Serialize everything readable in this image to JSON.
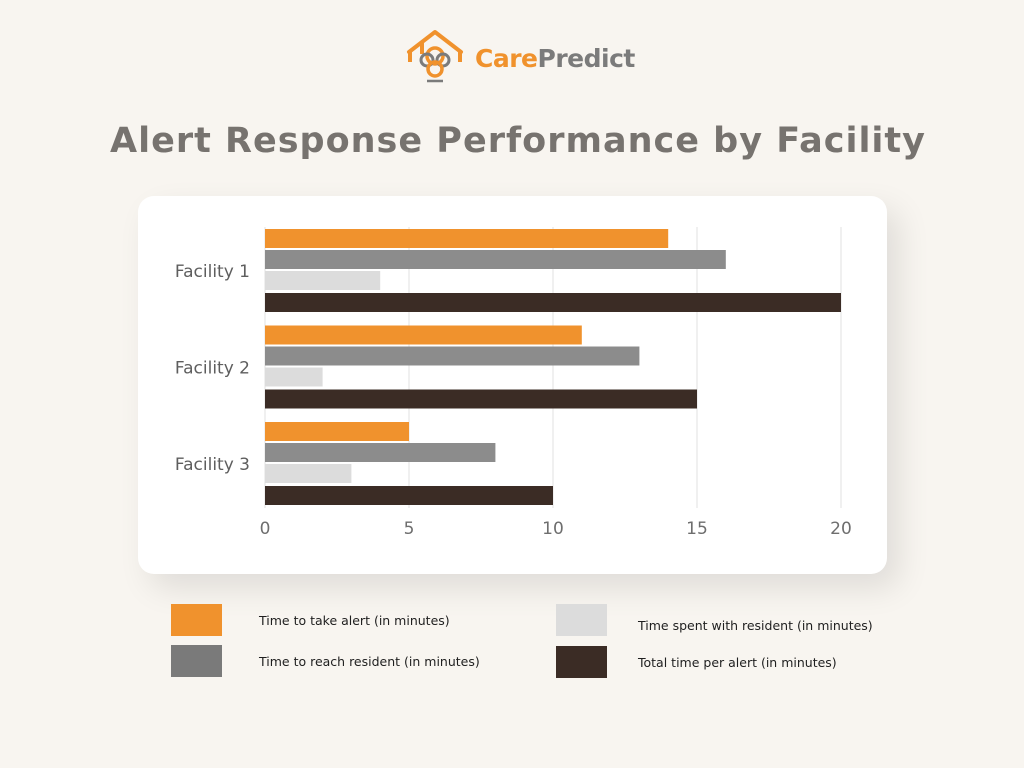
{
  "brand": {
    "care": "Care",
    "predict": "Predict",
    "colors": {
      "orange": "#f0922d",
      "gray": "#7b7b7b"
    },
    "icon": "house-with-pendant-icon"
  },
  "title": "Alert Response Performance by Facility",
  "chart_data": {
    "type": "bar",
    "orientation": "horizontal",
    "categories": [
      "Facility 1",
      "Facility 2",
      "Facility 3"
    ],
    "series": [
      {
        "name": "Time to take alert (in minutes)",
        "values": [
          14,
          11,
          5
        ],
        "color": "#f0922d"
      },
      {
        "name": "Time to reach resident (in minutes)",
        "values": [
          16,
          13,
          8
        ],
        "color": "#8c8c8c"
      },
      {
        "name": "Time spent with resident (in minutes)",
        "values": [
          4,
          2,
          3
        ],
        "color": "#dcdcdc"
      },
      {
        "name": "Total time per alert  (in minutes)",
        "values": [
          20,
          15,
          10
        ],
        "color": "#3b2c25"
      }
    ],
    "xlim": [
      0,
      20
    ],
    "xticks": [
      0,
      5,
      10,
      15,
      20
    ],
    "grid": true,
    "legend_position": "bottom"
  }
}
